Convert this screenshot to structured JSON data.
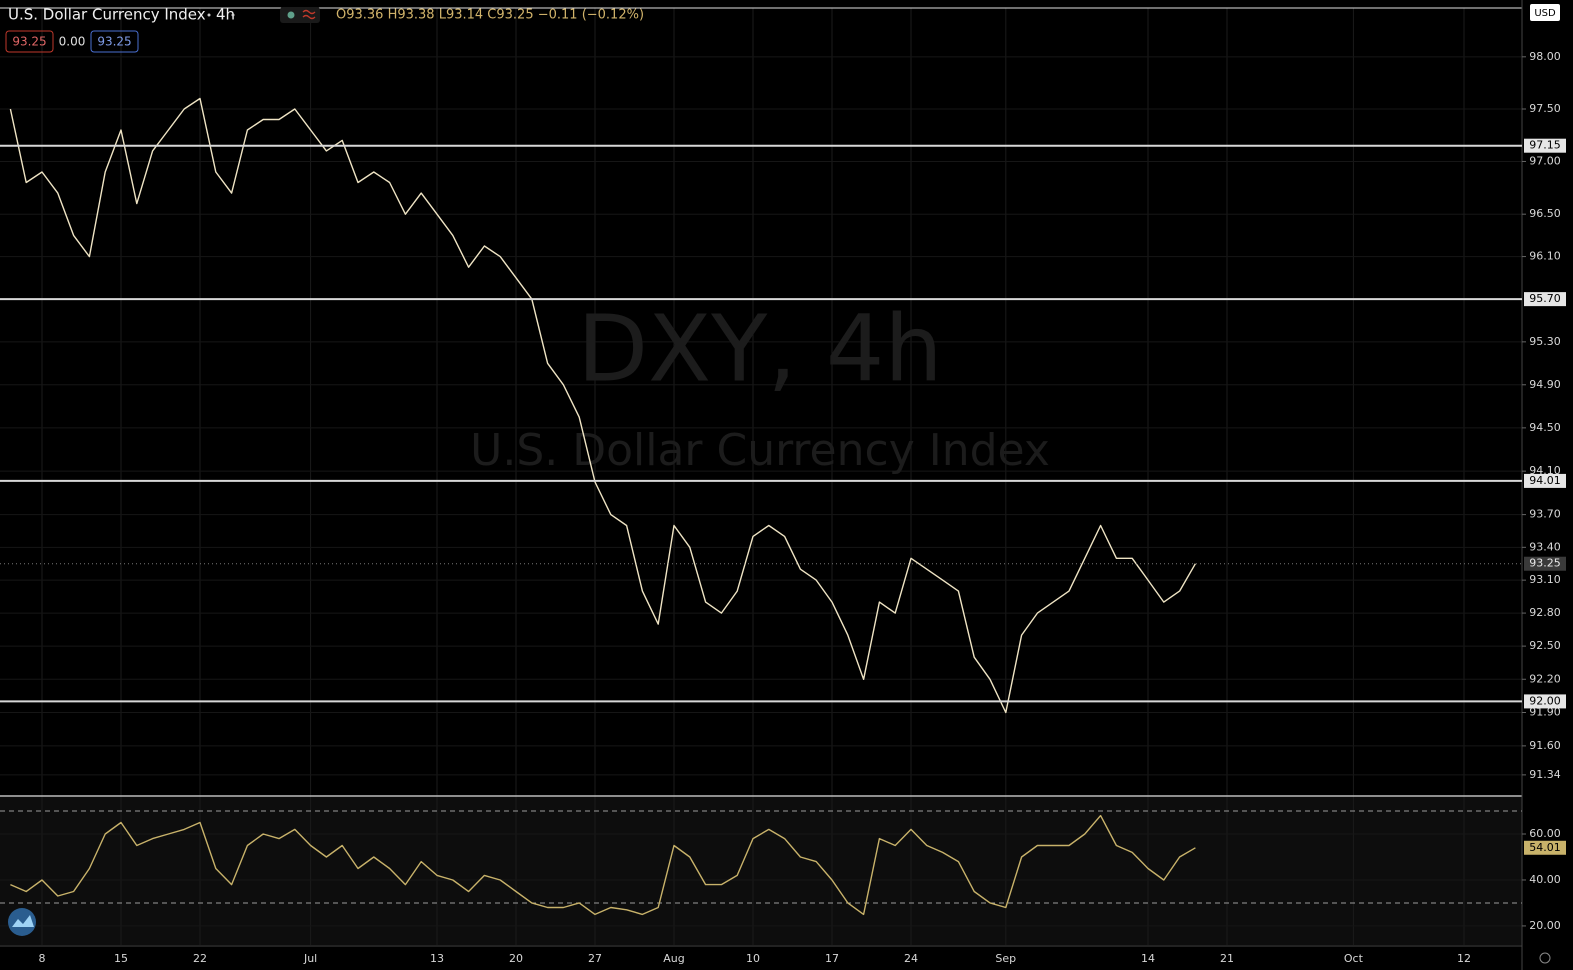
{
  "header": {
    "title": "U.S. Dollar Currency Index",
    "interval": "4h",
    "ohlc": "O93.36 H93.38 L93.14 C93.25 −0.11 (−0.12%)",
    "indicator_values": [
      "93.25",
      "0.00",
      "93.25"
    ],
    "currency": "USD"
  },
  "watermark": {
    "symbol": "DXY, 4h",
    "name": "U.S. Dollar Currency Index"
  },
  "chart_data": [
    {
      "type": "line",
      "log_scale": true,
      "grid": true,
      "categories": [
        null,
        null,
        "8",
        null,
        null,
        null,
        null,
        "15",
        null,
        null,
        null,
        null,
        "22",
        null,
        null,
        null,
        null,
        null,
        null,
        "Jul",
        null,
        null,
        null,
        null,
        null,
        null,
        null,
        "13",
        null,
        null,
        null,
        null,
        "20",
        null,
        null,
        null,
        null,
        "27",
        null,
        null,
        null,
        null,
        "Aug",
        null,
        null,
        null,
        null,
        "10",
        null,
        null,
        null,
        null,
        "17",
        null,
        null,
        null,
        null,
        "24",
        null,
        null,
        null,
        null,
        null,
        "Sep",
        null,
        null,
        null,
        null,
        null,
        null,
        null,
        null,
        "14",
        null,
        null,
        null,
        null,
        "21",
        null,
        null,
        null,
        null,
        null,
        null,
        null,
        "Oct",
        null,
        null,
        null,
        null,
        null,
        null,
        "12",
        null,
        null,
        null
      ],
      "series": [
        {
          "color": "#efe4c4",
          "values": [
            97.5,
            96.8,
            96.9,
            96.7,
            96.3,
            96.1,
            96.9,
            97.3,
            96.6,
            97.1,
            97.3,
            97.5,
            97.6,
            96.9,
            96.7,
            97.3,
            97.4,
            97.4,
            97.5,
            97.3,
            97.1,
            97.2,
            96.8,
            96.9,
            96.8,
            96.5,
            96.7,
            96.5,
            96.3,
            96.0,
            96.2,
            96.1,
            95.9,
            95.7,
            95.1,
            94.9,
            94.6,
            94.0,
            93.7,
            93.6,
            93.0,
            92.7,
            93.6,
            93.4,
            92.9,
            92.8,
            93.0,
            93.5,
            93.6,
            93.5,
            93.2,
            93.1,
            92.9,
            92.6,
            92.2,
            92.9,
            92.8,
            93.3,
            93.2,
            93.1,
            93.0,
            92.4,
            92.2,
            91.9,
            92.6,
            92.8,
            92.9,
            93.0,
            93.3,
            93.6,
            93.3,
            93.3,
            93.1,
            92.9,
            93.0,
            93.25,
            null,
            null,
            null,
            null,
            null,
            null,
            null,
            null,
            null,
            null,
            null,
            null,
            null,
            null,
            null,
            null,
            null,
            null,
            null,
            null
          ]
        }
      ],
      "ylim": [
        91.16,
        98.47
      ],
      "yticks": [
        {
          "value": 98,
          "label": "98.00"
        },
        {
          "value": 97.5,
          "label": "97.50"
        },
        {
          "value": 97,
          "label": "97.00"
        },
        {
          "value": 96.5,
          "label": "96.50"
        },
        {
          "value": 96.1,
          "label": "96.10"
        },
        {
          "value": 95.3,
          "label": "95.30"
        },
        {
          "value": 94.9,
          "label": "94.90"
        },
        {
          "value": 94.5,
          "label": "94.50"
        },
        {
          "value": 94.1,
          "label": "94.10"
        },
        {
          "value": 93.7,
          "label": "93.70"
        },
        {
          "value": 93.4,
          "label": "93.40"
        },
        {
          "value": 93.1,
          "label": "93.10"
        },
        {
          "value": 92.8,
          "label": "92.80"
        },
        {
          "value": 92.5,
          "label": "92.50"
        },
        {
          "value": 92.2,
          "label": "92.20"
        },
        {
          "value": 91.9,
          "label": "91.90"
        },
        {
          "value": 91.6,
          "label": "91.60"
        },
        91.34
      ],
      "levels": [
        97.15,
        {
          "value": 95.7,
          "label": "95.70"
        },
        94.01,
        {
          "value": 92,
          "label": "92.00"
        }
      ],
      "last_price": 93.25
    },
    {
      "type": "line",
      "color": "#c8b26a",
      "grid": true,
      "values": [
        38,
        35,
        40,
        33,
        35,
        45,
        60,
        65,
        55,
        58,
        60,
        62,
        65,
        45,
        38,
        55,
        60,
        58,
        62,
        55,
        50,
        55,
        45,
        50,
        45,
        38,
        48,
        42,
        40,
        35,
        42,
        40,
        35,
        30,
        28,
        28,
        30,
        25,
        28,
        27,
        25,
        28,
        55,
        50,
        38,
        38,
        42,
        58,
        62,
        58,
        50,
        48,
        40,
        30,
        25,
        58,
        55,
        62,
        55,
        52,
        48,
        35,
        30,
        28,
        50,
        55,
        55,
        55,
        60,
        68,
        55,
        52,
        45,
        40,
        50,
        54.01,
        null,
        null,
        null,
        null,
        null,
        null,
        null,
        null,
        null,
        null,
        null,
        null,
        null,
        null,
        null,
        null,
        null,
        null,
        null,
        null
      ],
      "ylim": [
        11.7,
        76.1
      ],
      "yticks": [
        {
          "value": 60,
          "label": "60.00"
        },
        {
          "value": 40,
          "label": "40.00"
        },
        {
          "value": 20,
          "label": "20.00"
        }
      ],
      "bands": [
        70,
        30
      ],
      "last_value": 54.01
    }
  ]
}
